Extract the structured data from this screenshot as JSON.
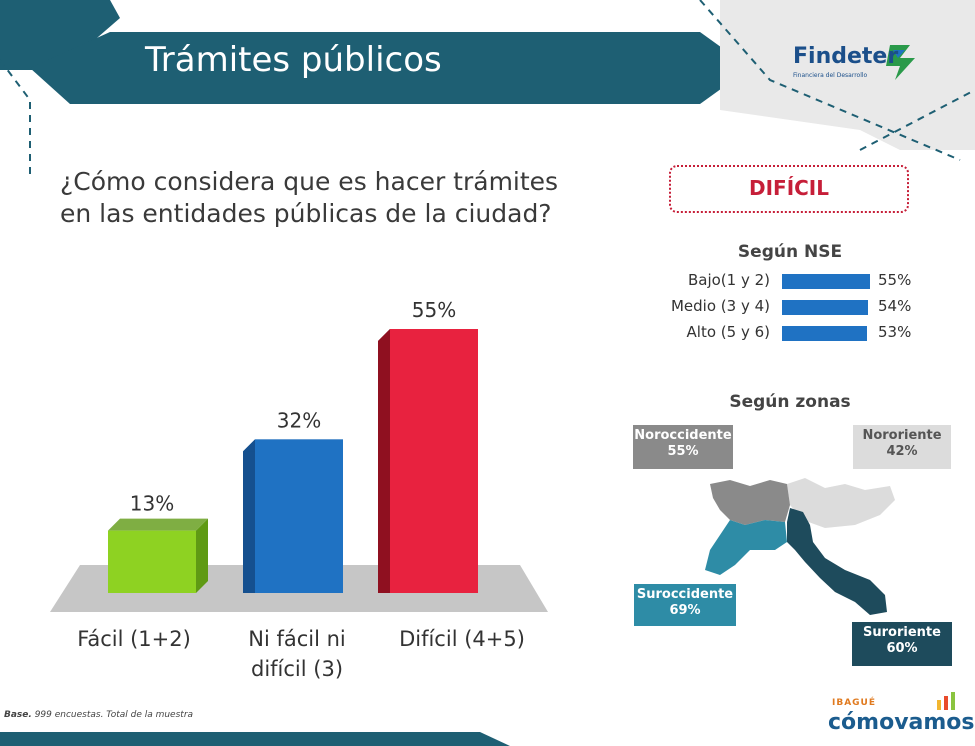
{
  "header": {
    "title": "Trámites públicos"
  },
  "brand": {
    "name": "Findeter",
    "tagline": "Financiera del Desarrollo"
  },
  "question": "¿Cómo considera que es hacer trámites en las entidades públicas de la ciudad?",
  "chart_data": {
    "type": "bar",
    "categories": [
      "Fácil (1+2)",
      "Ni fácil ni difícil (3)",
      "Difícil (4+5)"
    ],
    "category_lines": [
      [
        "Fácil (1+2)"
      ],
      [
        "Ni fácil ni",
        "difícil (3)"
      ],
      [
        "Difícil (4+5)"
      ]
    ],
    "values": [
      13,
      32,
      55
    ],
    "value_labels": [
      "13%",
      "32%",
      "55%"
    ],
    "colors": [
      "#8ed222",
      "#1f72c3",
      "#e8223f"
    ],
    "side_colors": [
      "#5f9a14",
      "#15508f",
      "#8f1020"
    ],
    "ylim": [
      0,
      55
    ]
  },
  "dificil": {
    "label": "DIFÍCIL",
    "nse": {
      "title": "Según NSE",
      "rows": [
        {
          "label": "Bajo(1 y 2)",
          "value": 55,
          "text": "55%"
        },
        {
          "label": "Medio (3 y 4)",
          "value": 54,
          "text": "54%"
        },
        {
          "label": "Alto (5 y 6)",
          "value": 53,
          "text": "53%"
        }
      ]
    },
    "zonas": {
      "title": "Según zonas",
      "items": [
        {
          "name": "Noroccidente",
          "value": "55%",
          "color": "#8a8a8a"
        },
        {
          "name": "Nororiente",
          "value": "42%",
          "color": "#dcdcdc"
        },
        {
          "name": "Suroccidente",
          "value": "69%",
          "color": "#2e8ca6"
        },
        {
          "name": "Suroriente",
          "value": "60%",
          "color": "#1e4b5c"
        }
      ]
    }
  },
  "footer": {
    "base_bold": "Base.",
    "base_text": " 999 encuestas. Total de la muestra",
    "logo_city": "IBAGUÉ",
    "logo_text": "cómovamos"
  }
}
